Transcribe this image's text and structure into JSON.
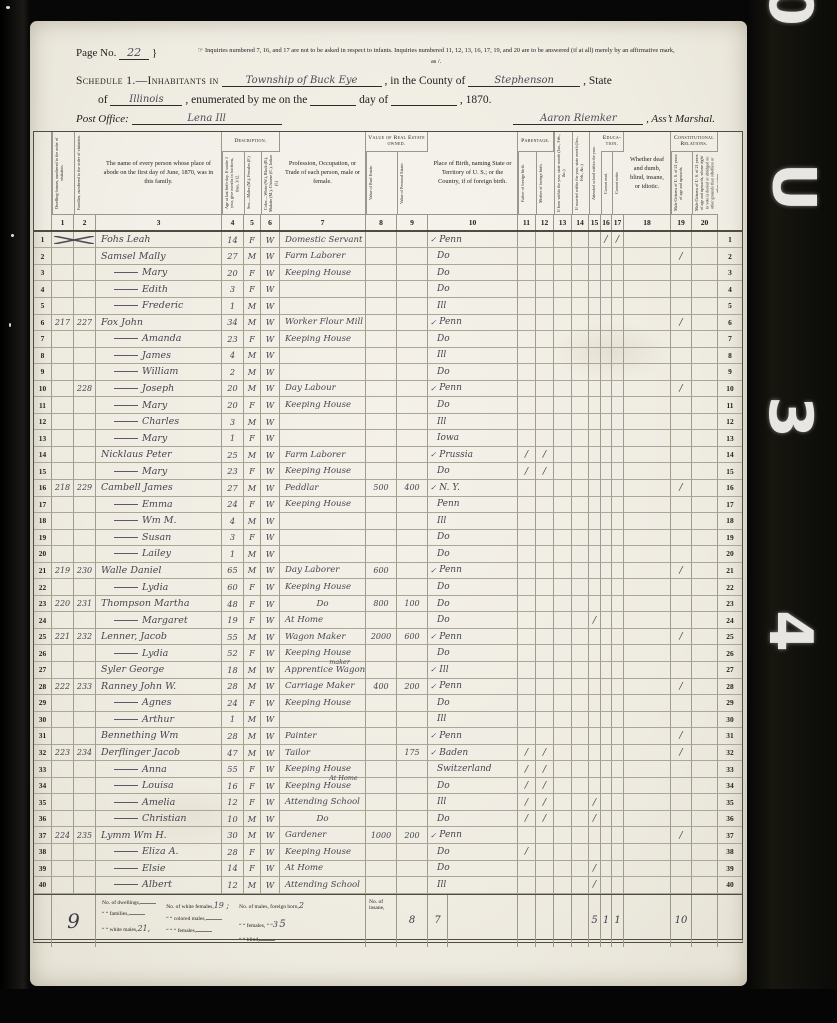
{
  "film": {
    "chars": [
      "0",
      "U",
      "3",
      "4"
    ]
  },
  "page": {
    "no_label": "Page No.",
    "no_value": "22",
    "brace": "}",
    "inquiries": "☞ Inquiries numbered 7, 16, and 17 are not to be asked in respect to infants.   Inquiries numbered 11, 12, 13, 16, 17, 19, and 20 are to be answered (if at all) merely by an affirmative mark, as /.",
    "schedule_prefix": "Schedule 1.—Inhabitants in",
    "township": "Township of Buck Eye",
    "county_label": ", in the County of",
    "county": "Stephenson",
    "state_suffix": ", State",
    "of_label": "of",
    "state": "Illinois",
    "enum_label": ", enumerated by me on the",
    "day_label": "day of",
    "year_label": ", 1870.",
    "po_label": "Post Office:",
    "po_value": "Lena Ill",
    "marshal": "Aaron Riemker",
    "marshal_label": ", Ass’t Marshal."
  },
  "table": {
    "groups": {
      "description": "Description.",
      "value": "Value of Real Estate owned.",
      "parentage": "Parentage.",
      "education": "Educa- tion.",
      "constitutional": "Constitutional Relations."
    },
    "columns": [
      {
        "no": "1",
        "label": "Dwelling-houses, numbered in the order of visitation.",
        "v": true
      },
      {
        "no": "2",
        "label": "Families, numbered in the order of visitation.",
        "v": true
      },
      {
        "no": "3",
        "label": "The name of every person whose place of abode on the first day of June, 1870, was in this family.",
        "v": false
      },
      {
        "no": "4",
        "label": "Age at last birth-day. If under 1 year, give months in fractions, thus, 3/12.",
        "v": true,
        "group": "description"
      },
      {
        "no": "5",
        "label": "Sex.—Males (M.), Females (F.)",
        "v": true,
        "group": "description"
      },
      {
        "no": "6",
        "label": "Color.—White (W.), Black (B.), Mulatto (M.), Chinese (C.), Indian (I.)",
        "v": true,
        "group": "description"
      },
      {
        "no": "7",
        "label": "Profession, Occupation, or Trade of each person, male or female.",
        "v": false
      },
      {
        "no": "8",
        "label": "Value of Real Estate.",
        "v": true,
        "group": "value"
      },
      {
        "no": "9",
        "label": "Value of Personal Estate.",
        "v": true,
        "group": "value"
      },
      {
        "no": "10",
        "label": "Place of Birth, naming State or Territory of U. S.; or the Country, if of foreign birth.",
        "v": false
      },
      {
        "no": "11",
        "label": "Father of foreign birth.",
        "v": true,
        "group": "parentage"
      },
      {
        "no": "12",
        "label": "Mother of foreign birth.",
        "v": true,
        "group": "parentage"
      },
      {
        "no": "13",
        "label": "If born within the year, state month (Jan., Feb., &c.)",
        "v": true
      },
      {
        "no": "14",
        "label": "If married within the year, state month (Jan., Feb., &c.)",
        "v": true
      },
      {
        "no": "15",
        "label": "Attended school within the year.",
        "v": true
      },
      {
        "no": "16",
        "label": "Cannot read.",
        "v": true,
        "group": "education"
      },
      {
        "no": "17",
        "label": "Cannot write.",
        "v": true,
        "group": "education"
      },
      {
        "no": "18",
        "label": "Whether deaf and dumb, blind, insane, or idiotic.",
        "v": false
      },
      {
        "no": "19",
        "label": "Male Citizens of U. S. of 21 years of age and upwards.",
        "v": true,
        "group": "constitutional"
      },
      {
        "no": "20",
        "label": "Male Citizens of U. S. of 21 years of age and upwards, whose right to vote is denied or abridged on other grounds than rebellion or other crime.",
        "v": true,
        "group": "constitutional"
      }
    ],
    "rows": [
      {
        "sc": true,
        "nm": "Fohs Leah",
        "ag": "14",
        "sx": "F",
        "cl": "W",
        "oc": "Domestic Servant",
        "tk": true,
        "bp": "Penn",
        "m16": "/",
        "m17": "/"
      },
      {
        "nm": "Samsel Mally",
        "ag": "27",
        "sx": "M",
        "cl": "W",
        "oc": "Farm Laborer",
        "bp": "Do",
        "m19": "/"
      },
      {
        "da": true,
        "nm": "Mary",
        "ag": "20",
        "sx": "F",
        "cl": "W",
        "oc": "Keeping House",
        "bp": "Do"
      },
      {
        "da": true,
        "nm": "Edith",
        "ag": "3",
        "sx": "F",
        "cl": "W",
        "bp": "Do"
      },
      {
        "da": true,
        "nm": "Frederic",
        "ag": "1",
        "sx": "M",
        "cl": "W",
        "bp": "Ill"
      },
      {
        "dw": "217",
        "fam": "227",
        "nm": "Fox John",
        "ag": "34",
        "sx": "M",
        "cl": "W",
        "oc": "Worker Flour Mill",
        "tk": true,
        "bp": "Penn",
        "m19": "/"
      },
      {
        "da": true,
        "nm": "Amanda",
        "ag": "23",
        "sx": "F",
        "cl": "W",
        "oc": "Keeping House",
        "bp": "Do"
      },
      {
        "da": true,
        "nm": "James",
        "ag": "4",
        "sx": "M",
        "cl": "W",
        "bp": "Ill"
      },
      {
        "da": true,
        "nm": "William",
        "ag": "2",
        "sx": "M",
        "cl": "W",
        "bp": "Do"
      },
      {
        "fam": "228",
        "da": true,
        "nm": "Joseph",
        "ag": "20",
        "sx": "M",
        "cl": "W",
        "oc": "Day Labour",
        "tk": true,
        "bp": "Penn",
        "m19": "/"
      },
      {
        "da": true,
        "nm": "Mary",
        "ag": "20",
        "sx": "F",
        "cl": "W",
        "oc": "Keeping House",
        "bp": "Do"
      },
      {
        "da": true,
        "nm": "Charles",
        "ag": "3",
        "sx": "M",
        "cl": "W",
        "bp": "Ill"
      },
      {
        "da": true,
        "nm": "Mary",
        "ag": "1",
        "sx": "F",
        "cl": "W",
        "bp": "Iowa"
      },
      {
        "nm": "Nicklaus Peter",
        "ag": "25",
        "sx": "M",
        "cl": "W",
        "oc": "Farm Laborer",
        "tk": true,
        "bp": "Prussia",
        "m11": "/",
        "m12": "/"
      },
      {
        "da": true,
        "nm": "Mary",
        "ag": "23",
        "sx": "F",
        "cl": "W",
        "oc": "Keeping House",
        "bp": "Do",
        "m11": "/",
        "m12": "/"
      },
      {
        "dw": "218",
        "fam": "229",
        "nm": "Cambell James",
        "ag": "27",
        "sx": "M",
        "cl": "W",
        "oc": "Peddlar",
        "re": "500",
        "pe": "400",
        "tk": true,
        "bp": "N. Y.",
        "m19": "/"
      },
      {
        "da": true,
        "nm": "Emma",
        "ag": "24",
        "sx": "F",
        "cl": "W",
        "oc": "Keeping House",
        "bp": "Penn"
      },
      {
        "da": true,
        "nm": "Wm M.",
        "ag": "4",
        "sx": "M",
        "cl": "W",
        "bp": "Ill"
      },
      {
        "da": true,
        "nm": "Susan",
        "ag": "3",
        "sx": "F",
        "cl": "W",
        "bp": "Do"
      },
      {
        "da": true,
        "nm": "Lailey",
        "ag": "1",
        "sx": "M",
        "cl": "W",
        "bp": "Do"
      },
      {
        "dw": "219",
        "fam": "230",
        "nm": "Walle Daniel",
        "ag": "65",
        "sx": "M",
        "cl": "W",
        "oc": "Day Laborer",
        "re": "600",
        "tk": true,
        "bp": "Penn",
        "m19": "/"
      },
      {
        "da": true,
        "nm": "Lydia",
        "ag": "60",
        "sx": "F",
        "cl": "W",
        "oc": "Keeping House",
        "bp": "Do"
      },
      {
        "dw": "220",
        "fam": "231",
        "nm": "Thompson Martha",
        "ag": "48",
        "sx": "F",
        "cl": "W",
        "oc": "Do",
        "ct": true,
        "re": "800",
        "pe": "100",
        "bp": "Do"
      },
      {
        "da": true,
        "nm": "Margaret",
        "ag": "19",
        "sx": "F",
        "cl": "W",
        "oc": "At Home",
        "bp": "Do",
        "m15": "/"
      },
      {
        "dw": "221",
        "fam": "232",
        "nm": "Lenner, Jacob",
        "ag": "55",
        "sx": "M",
        "cl": "W",
        "oc": "Wagon Maker",
        "re": "2000",
        "pe": "600",
        "tk": true,
        "bp": "Penn",
        "m19": "/"
      },
      {
        "da": true,
        "nm": "Lydia",
        "ag": "52",
        "sx": "F",
        "cl": "W",
        "oc": "Keeping House",
        "bp": "Do"
      },
      {
        "nm": "Syler George",
        "ag": "18",
        "sx": "M",
        "cl": "W",
        "oc": "Apprentice Wagon",
        "nt": "maker",
        "tk": true,
        "bp": "Ill"
      },
      {
        "dw": "222",
        "fam": "233",
        "nm": "Ranney John W.",
        "ag": "28",
        "sx": "M",
        "cl": "W",
        "oc": "Carriage Maker",
        "re": "400",
        "pe": "200",
        "tk": true,
        "bp": "Penn",
        "m19": "/"
      },
      {
        "da": true,
        "nm": "Agnes",
        "ag": "24",
        "sx": "F",
        "cl": "W",
        "oc": "Keeping House",
        "bp": "Do"
      },
      {
        "da": true,
        "nm": "Arthur",
        "ag": "1",
        "sx": "M",
        "cl": "W",
        "bp": "Ill"
      },
      {
        "nm": "Bennething Wm",
        "ag": "28",
        "sx": "M",
        "cl": "W",
        "oc": "Painter",
        "tk": true,
        "bp": "Penn",
        "m19": "/"
      },
      {
        "dw": "223",
        "fam": "234",
        "nm": "Derflinger Jacob",
        "ag": "47",
        "sx": "M",
        "cl": "W",
        "oc": "Tailor",
        "pe": "175",
        "tk": true,
        "bp": "Baden",
        "m11": "/",
        "m12": "/",
        "m19": "/"
      },
      {
        "da": true,
        "nm": "Anna",
        "ag": "55",
        "sx": "F",
        "cl": "W",
        "oc": "Keeping House",
        "bp": "Switzerland",
        "m11": "/",
        "m12": "/"
      },
      {
        "da": true,
        "nm": "Louisa",
        "ag": "16",
        "sx": "F",
        "cl": "W",
        "oc": "Keeping House",
        "nt": "At Home",
        "bp": "Do",
        "m11": "/",
        "m12": "/"
      },
      {
        "da": true,
        "nm": "Amelia",
        "ag": "12",
        "sx": "F",
        "cl": "W",
        "oc": "Attending School",
        "bp": "Ill",
        "m11": "/",
        "m12": "/",
        "m15": "/"
      },
      {
        "da": true,
        "nm": "Christian",
        "ag": "10",
        "sx": "M",
        "cl": "W",
        "oc": "Do",
        "ct": true,
        "bp": "Do",
        "m11": "/",
        "m12": "/",
        "m15": "/"
      },
      {
        "dw": "224",
        "fam": "235",
        "nm": "Lymm Wm H.",
        "ag": "30",
        "sx": "M",
        "cl": "W",
        "oc": "Gardener",
        "re": "1000",
        "pe": "200",
        "tk": true,
        "bp": "Penn",
        "m19": "/"
      },
      {
        "da": true,
        "nm": "Eliza A.",
        "ag": "28",
        "sx": "F",
        "cl": "W",
        "oc": "Keeping House",
        "bp": "Do",
        "m11": "/"
      },
      {
        "da": true,
        "nm": "Elsie",
        "ag": "14",
        "sx": "F",
        "cl": "W",
        "oc": "At Home",
        "bp": "Do",
        "m15": "/"
      },
      {
        "da": true,
        "nm": "Albert",
        "ag": "12",
        "sx": "M",
        "cl": "W",
        "oc": "Attending School",
        "bp": "Ill",
        "m15": "/"
      }
    ]
  },
  "footer": {
    "nine": "9",
    "colA": {
      "l1": "No. of dwellings,",
      "l2": "“  “  families,",
      "l3": "“  “  white males,",
      "v3": "21,"
    },
    "colB": {
      "l1": "No. of white females,",
      "v1": "19 ;",
      "l2": "“  “  colored males,",
      "l3": "“   “    “   females,"
    },
    "colC": {
      "l1": "No. of males, foreign born,",
      "v1": "2",
      "l2": "“  “  females,  “   “",
      "v2": "3",
      "v2b": "5",
      "l3": "“  “  blind,"
    },
    "insane": "No. of insane,",
    "t11": "8",
    "t12": "7",
    "t15": "5",
    "t16": "1",
    "t17": "1",
    "t19": "10"
  }
}
